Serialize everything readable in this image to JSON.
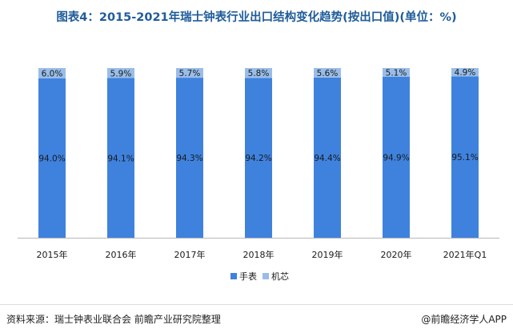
{
  "title": "图表4：2015-2021年瑞士钟表行业出口结构变化趋势(按出口值)(单位：%)",
  "source": "资料来源：瑞士钟表业联合会 前瞻产业研究院整理",
  "brand": "@前瞻经济学人APP",
  "colors": {
    "watch": "#3f82de",
    "movement": "#99bde9"
  },
  "chart_data": {
    "type": "bar",
    "stacked": true,
    "categories": [
      "2015年",
      "2016年",
      "2017年",
      "2018年",
      "2019年",
      "2020年",
      "2021年Q1"
    ],
    "series": [
      {
        "name": "手表",
        "values": [
          94.0,
          94.1,
          94.3,
          94.2,
          94.4,
          94.9,
          95.1
        ],
        "labels": [
          "94.0%",
          "94.1%",
          "94.3%",
          "94.2%",
          "94.4%",
          "94.9%",
          "95.1%"
        ]
      },
      {
        "name": "机芯",
        "values": [
          6.0,
          5.9,
          5.7,
          5.8,
          5.6,
          5.1,
          4.9
        ],
        "labels": [
          "6.0%",
          "5.9%",
          "5.7%",
          "5.8%",
          "5.6%",
          "5.1%",
          "4.9%"
        ]
      }
    ],
    "ylim": [
      0,
      100
    ],
    "grid": false,
    "legend": "bottom"
  }
}
